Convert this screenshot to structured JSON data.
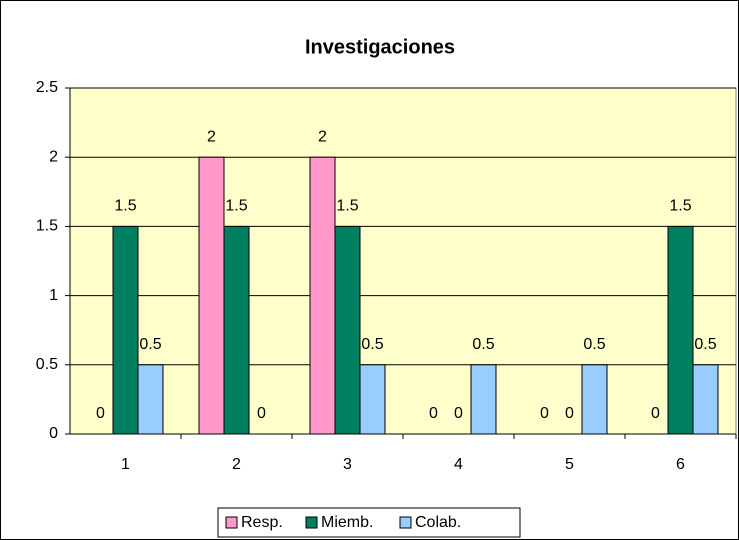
{
  "chart_data": {
    "type": "bar",
    "title": "Investigaciones",
    "categories": [
      "1",
      "2",
      "3",
      "4",
      "5",
      "6"
    ],
    "series": [
      {
        "name": "Resp.",
        "color": "#ff99cc",
        "values": [
          0,
          2,
          2,
          0,
          0,
          0
        ]
      },
      {
        "name": "Miemb.",
        "color": "#008060",
        "values": [
          1.5,
          1.5,
          1.5,
          0,
          0,
          1.5
        ]
      },
      {
        "name": "Colab.",
        "color": "#99ccff",
        "values": [
          0.5,
          0,
          0.5,
          0.5,
          0.5,
          0.5
        ]
      }
    ],
    "ylim": [
      0,
      2.5
    ],
    "yticks": [
      0,
      0.5,
      1,
      1.5,
      2,
      2.5
    ],
    "grid": true,
    "legend": "bottom"
  }
}
